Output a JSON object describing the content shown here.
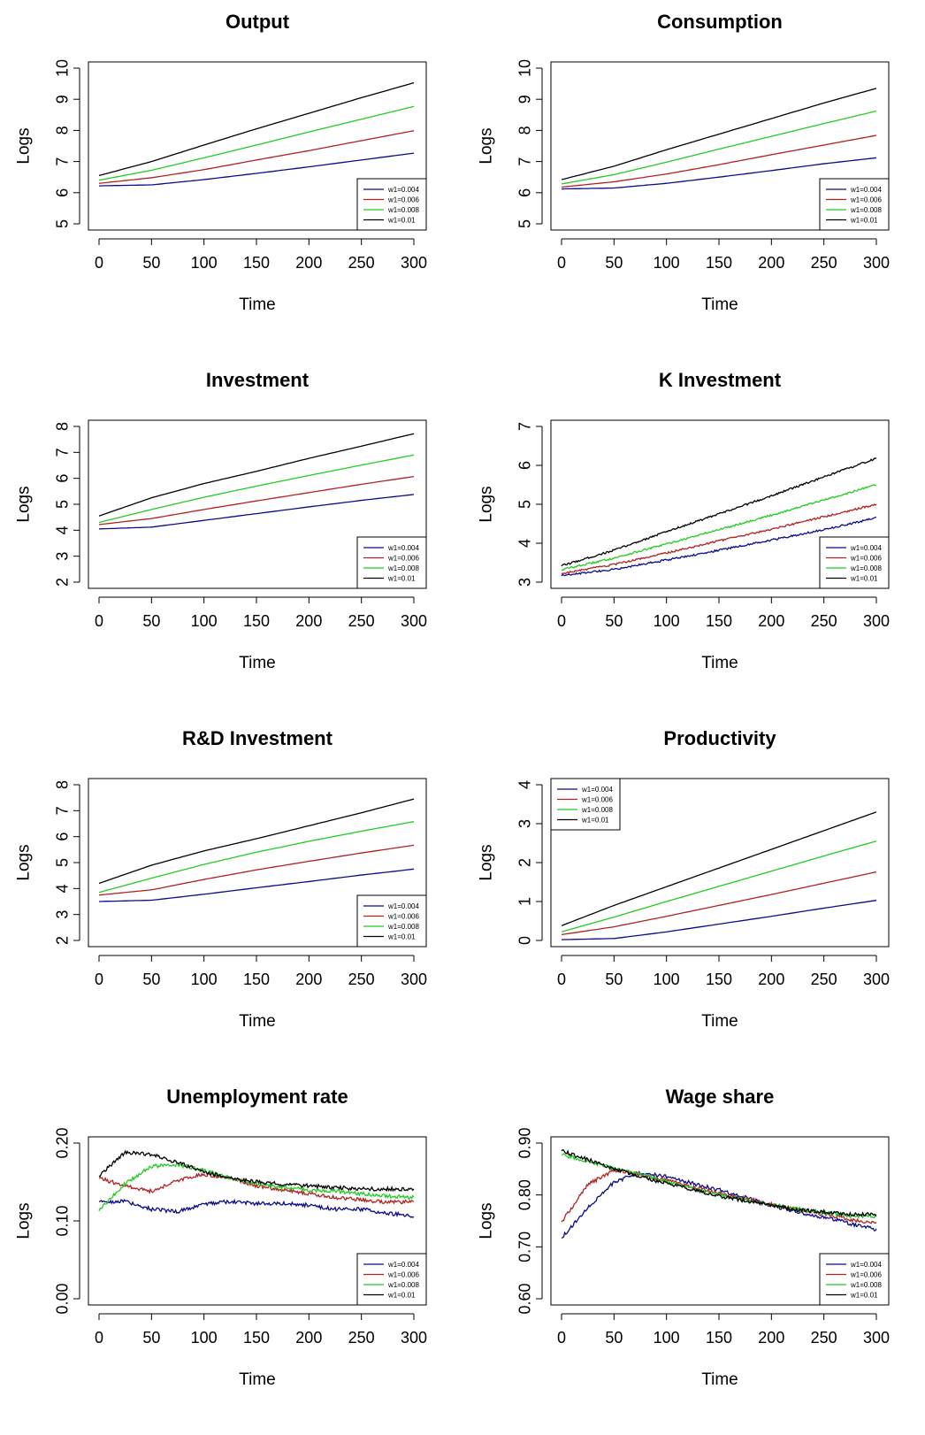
{
  "legend_entries": [
    "w1=0.004",
    "w1=0.006",
    "w1=0.008",
    "w1=0.01"
  ],
  "series_colors": [
    "#0b0b8c",
    "#b22222",
    "#22cc22",
    "#000000"
  ],
  "chart_data": [
    {
      "type": "line",
      "title": "Output",
      "xlabel": "Time",
      "ylabel": "Logs",
      "xlim": [
        0,
        300
      ],
      "ylim": [
        5,
        10
      ],
      "xticks": [
        "0",
        "50",
        "100",
        "150",
        "200",
        "250",
        "300"
      ],
      "yticks": [
        "5",
        "6",
        "7",
        "8",
        "9",
        "10"
      ],
      "legend_position": "bottom-right",
      "x": [
        0,
        50,
        100,
        150,
        200,
        250,
        300
      ],
      "series": [
        {
          "name": "w1=0.004",
          "color": "#0b0b8c",
          "values": [
            6.22,
            6.25,
            6.42,
            6.62,
            6.83,
            7.05,
            7.27
          ]
        },
        {
          "name": "w1=0.006",
          "color": "#b22222",
          "values": [
            6.3,
            6.48,
            6.74,
            7.05,
            7.35,
            7.67,
            7.99
          ]
        },
        {
          "name": "w1=0.008",
          "color": "#22cc22",
          "values": [
            6.4,
            6.72,
            7.12,
            7.53,
            7.95,
            8.36,
            8.77
          ]
        },
        {
          "name": "w1=0.01",
          "color": "#000000",
          "values": [
            6.55,
            7.0,
            7.53,
            8.05,
            8.55,
            9.05,
            9.53
          ]
        }
      ]
    },
    {
      "type": "line",
      "title": "Consumption",
      "xlabel": "Time",
      "ylabel": "Logs",
      "xlim": [
        0,
        300
      ],
      "ylim": [
        5,
        10
      ],
      "xticks": [
        "0",
        "50",
        "100",
        "150",
        "200",
        "250",
        "300"
      ],
      "yticks": [
        "5",
        "6",
        "7",
        "8",
        "9",
        "10"
      ],
      "legend_position": "bottom-right",
      "x": [
        0,
        50,
        100,
        150,
        200,
        250,
        300
      ],
      "series": [
        {
          "name": "w1=0.004",
          "color": "#0b0b8c",
          "values": [
            6.12,
            6.15,
            6.3,
            6.5,
            6.71,
            6.93,
            7.12
          ]
        },
        {
          "name": "w1=0.006",
          "color": "#b22222",
          "values": [
            6.18,
            6.35,
            6.6,
            6.9,
            7.22,
            7.53,
            7.84
          ]
        },
        {
          "name": "w1=0.008",
          "color": "#22cc22",
          "values": [
            6.28,
            6.58,
            6.98,
            7.4,
            7.81,
            8.22,
            8.62
          ]
        },
        {
          "name": "w1=0.01",
          "color": "#000000",
          "values": [
            6.42,
            6.85,
            7.38,
            7.88,
            8.38,
            8.88,
            9.35
          ]
        }
      ]
    },
    {
      "type": "line",
      "title": "Investment",
      "xlabel": "Time",
      "ylabel": "Logs",
      "xlim": [
        0,
        300
      ],
      "ylim": [
        2,
        8
      ],
      "xticks": [
        "0",
        "50",
        "100",
        "150",
        "200",
        "250",
        "300"
      ],
      "yticks": [
        "2",
        "3",
        "4",
        "5",
        "6",
        "7",
        "8"
      ],
      "legend_position": "bottom-right",
      "x": [
        0,
        50,
        100,
        150,
        200,
        250,
        300
      ],
      "series": [
        {
          "name": "w1=0.004",
          "color": "#0b0b8c",
          "values": [
            4.05,
            4.12,
            4.38,
            4.64,
            4.9,
            5.15,
            5.38
          ]
        },
        {
          "name": "w1=0.006",
          "color": "#b22222",
          "values": [
            4.22,
            4.45,
            4.8,
            5.13,
            5.45,
            5.77,
            6.07
          ]
        },
        {
          "name": "w1=0.008",
          "color": "#22cc22",
          "values": [
            4.3,
            4.8,
            5.27,
            5.7,
            6.11,
            6.51,
            6.9
          ]
        },
        {
          "name": "w1=0.01",
          "color": "#000000",
          "values": [
            4.55,
            5.25,
            5.8,
            6.27,
            6.77,
            7.24,
            7.72
          ]
        }
      ]
    },
    {
      "type": "line",
      "title": "K Investment",
      "xlabel": "Time",
      "ylabel": "Logs",
      "xlim": [
        0,
        300
      ],
      "ylim": [
        3,
        7
      ],
      "xticks": [
        "0",
        "50",
        "100",
        "150",
        "200",
        "250",
        "300"
      ],
      "yticks": [
        "3",
        "4",
        "5",
        "6",
        "7"
      ],
      "legend_position": "bottom-right",
      "x": [
        0,
        50,
        100,
        150,
        200,
        250,
        300
      ],
      "series": [
        {
          "name": "w1=0.004",
          "color": "#0b0b8c",
          "values": [
            3.17,
            3.33,
            3.57,
            3.82,
            4.08,
            4.35,
            4.65
          ]
        },
        {
          "name": "w1=0.006",
          "color": "#b22222",
          "values": [
            3.22,
            3.45,
            3.75,
            4.06,
            4.36,
            4.68,
            5.0
          ]
        },
        {
          "name": "w1=0.008",
          "color": "#22cc22",
          "values": [
            3.32,
            3.62,
            3.98,
            4.35,
            4.72,
            5.11,
            5.5
          ]
        },
        {
          "name": "w1=0.01",
          "color": "#000000",
          "values": [
            3.42,
            3.82,
            4.3,
            4.75,
            5.22,
            5.7,
            6.18
          ]
        }
      ]
    },
    {
      "type": "line",
      "title": "R&D Investment",
      "xlabel": "Time",
      "ylabel": "Logs",
      "xlim": [
        0,
        300
      ],
      "ylim": [
        2,
        8
      ],
      "xticks": [
        "0",
        "50",
        "100",
        "150",
        "200",
        "250",
        "300"
      ],
      "yticks": [
        "2",
        "3",
        "4",
        "5",
        "6",
        "7",
        "8"
      ],
      "legend_position": "bottom-right",
      "x": [
        0,
        50,
        100,
        150,
        200,
        250,
        300
      ],
      "series": [
        {
          "name": "w1=0.004",
          "color": "#0b0b8c",
          "values": [
            3.5,
            3.55,
            3.78,
            4.03,
            4.27,
            4.52,
            4.75
          ]
        },
        {
          "name": "w1=0.006",
          "color": "#b22222",
          "values": [
            3.75,
            3.95,
            4.35,
            4.72,
            5.05,
            5.37,
            5.67
          ]
        },
        {
          "name": "w1=0.008",
          "color": "#22cc22",
          "values": [
            3.85,
            4.4,
            4.93,
            5.4,
            5.82,
            6.21,
            6.58
          ]
        },
        {
          "name": "w1=0.01",
          "color": "#000000",
          "values": [
            4.2,
            4.9,
            5.45,
            5.92,
            6.42,
            6.92,
            7.45
          ]
        }
      ]
    },
    {
      "type": "line",
      "title": "Productivity",
      "xlabel": "Time",
      "ylabel": "Logs",
      "xlim": [
        0,
        300
      ],
      "ylim": [
        0,
        4
      ],
      "xticks": [
        "0",
        "50",
        "100",
        "150",
        "200",
        "250",
        "300"
      ],
      "yticks": [
        "0",
        "1",
        "2",
        "3",
        "4"
      ],
      "legend_position": "top-left",
      "x": [
        0,
        50,
        100,
        150,
        200,
        250,
        300
      ],
      "series": [
        {
          "name": "w1=0.004",
          "color": "#0b0b8c",
          "values": [
            0.02,
            0.05,
            0.22,
            0.42,
            0.62,
            0.83,
            1.03
          ]
        },
        {
          "name": "w1=0.006",
          "color": "#b22222",
          "values": [
            0.15,
            0.35,
            0.62,
            0.9,
            1.18,
            1.47,
            1.76
          ]
        },
        {
          "name": "w1=0.008",
          "color": "#22cc22",
          "values": [
            0.22,
            0.6,
            1.0,
            1.39,
            1.78,
            2.17,
            2.55
          ]
        },
        {
          "name": "w1=0.01",
          "color": "#000000",
          "values": [
            0.38,
            0.9,
            1.38,
            1.86,
            2.34,
            2.82,
            3.3
          ]
        }
      ]
    },
    {
      "type": "line",
      "title": "Unemployment rate",
      "xlabel": "Time",
      "ylabel": "Logs",
      "xlim": [
        0,
        300
      ],
      "ylim": [
        0,
        0.2
      ],
      "xticks": [
        "0",
        "50",
        "100",
        "150",
        "200",
        "250",
        "300"
      ],
      "yticks": [
        "0.00",
        "0.10",
        "0.20"
      ],
      "legend_position": "bottom-right",
      "x": [
        0,
        25,
        50,
        75,
        100,
        125,
        150,
        175,
        200,
        225,
        250,
        275,
        300
      ],
      "series": [
        {
          "name": "w1=0.004",
          "color": "#0b0b8c",
          "values": [
            0.125,
            0.125,
            0.115,
            0.112,
            0.122,
            0.125,
            0.122,
            0.123,
            0.12,
            0.115,
            0.115,
            0.11,
            0.106
          ]
        },
        {
          "name": "w1=0.006",
          "color": "#b22222",
          "values": [
            0.155,
            0.145,
            0.138,
            0.152,
            0.16,
            0.155,
            0.145,
            0.14,
            0.135,
            0.13,
            0.127,
            0.124,
            0.125
          ]
        },
        {
          "name": "w1=0.008",
          "color": "#22cc22",
          "values": [
            0.113,
            0.148,
            0.17,
            0.172,
            0.165,
            0.155,
            0.148,
            0.143,
            0.14,
            0.138,
            0.135,
            0.132,
            0.13
          ]
        },
        {
          "name": "w1=0.01",
          "color": "#000000",
          "values": [
            0.158,
            0.188,
            0.185,
            0.175,
            0.163,
            0.155,
            0.15,
            0.147,
            0.145,
            0.143,
            0.141,
            0.141,
            0.14
          ]
        }
      ]
    },
    {
      "type": "line",
      "title": "Wage share",
      "xlabel": "Time",
      "ylabel": "Logs",
      "xlim": [
        0,
        300
      ],
      "ylim": [
        0.6,
        0.9
      ],
      "xticks": [
        "0",
        "50",
        "100",
        "150",
        "200",
        "250",
        "300"
      ],
      "yticks": [
        "0.60",
        "0.70",
        "0.80",
        "0.90"
      ],
      "legend_position": "bottom-right",
      "x": [
        0,
        25,
        50,
        75,
        100,
        125,
        150,
        175,
        200,
        225,
        250,
        275,
        300
      ],
      "series": [
        {
          "name": "w1=0.004",
          "color": "#0b0b8c",
          "values": [
            0.717,
            0.775,
            0.825,
            0.843,
            0.835,
            0.822,
            0.81,
            0.795,
            0.78,
            0.767,
            0.757,
            0.745,
            0.733
          ]
        },
        {
          "name": "w1=0.006",
          "color": "#b22222",
          "values": [
            0.748,
            0.82,
            0.848,
            0.84,
            0.828,
            0.815,
            0.803,
            0.793,
            0.782,
            0.772,
            0.763,
            0.752,
            0.745
          ]
        },
        {
          "name": "w1=0.008",
          "color": "#22cc22",
          "values": [
            0.877,
            0.865,
            0.85,
            0.84,
            0.826,
            0.812,
            0.8,
            0.79,
            0.781,
            0.773,
            0.766,
            0.76,
            0.759
          ]
        },
        {
          "name": "w1=0.01",
          "color": "#000000",
          "values": [
            0.885,
            0.868,
            0.85,
            0.836,
            0.822,
            0.81,
            0.798,
            0.789,
            0.78,
            0.772,
            0.767,
            0.763,
            0.762
          ]
        }
      ]
    }
  ]
}
